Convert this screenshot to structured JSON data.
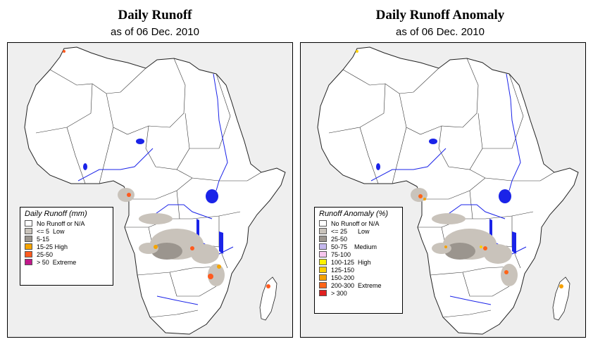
{
  "left": {
    "title": "Daily Runoff",
    "subtitle": "as of  06 Dec. 2010",
    "legend_title": "Daily Runoff (mm)",
    "legend": [
      {
        "label": "No Runoff or N/A",
        "color": "#ffffff"
      },
      {
        "label": "<= 5  Low",
        "color": "#c9c3bb"
      },
      {
        "label": "5-15",
        "color": "#9b958e"
      },
      {
        "label": "15-25 High",
        "color": "#f5a400"
      },
      {
        "label": "25-50",
        "color": "#ff5a1e"
      },
      {
        "label": "> 50  Extreme",
        "color": "#c0188a"
      }
    ]
  },
  "right": {
    "title": "Daily Runoff Anomaly",
    "subtitle": "as of  06 Dec. 2010",
    "legend_title": "Runoff Anomaly (%)",
    "legend": [
      {
        "label": "No Runoff or N/A",
        "color": "#ffffff"
      },
      {
        "label": "<= 25      Low",
        "color": "#c9c3bb"
      },
      {
        "label": "25-50",
        "color": "#9b958e"
      },
      {
        "label": "50-75    Medium",
        "color": "#c5b8ee"
      },
      {
        "label": "75-100",
        "color": "#f7c6ee"
      },
      {
        "label": "100-125  High",
        "color": "#fff200"
      },
      {
        "label": "125-150",
        "color": "#ffd000"
      },
      {
        "label": "150-200",
        "color": "#f5a000"
      },
      {
        "label": "200-300  Extreme",
        "color": "#ff6418"
      },
      {
        "label": "> 300",
        "color": "#e02020"
      }
    ]
  },
  "colors": {
    "background": "#efefef",
    "land": "#ffffff",
    "water": "#1a23e8",
    "border": "#222222"
  }
}
